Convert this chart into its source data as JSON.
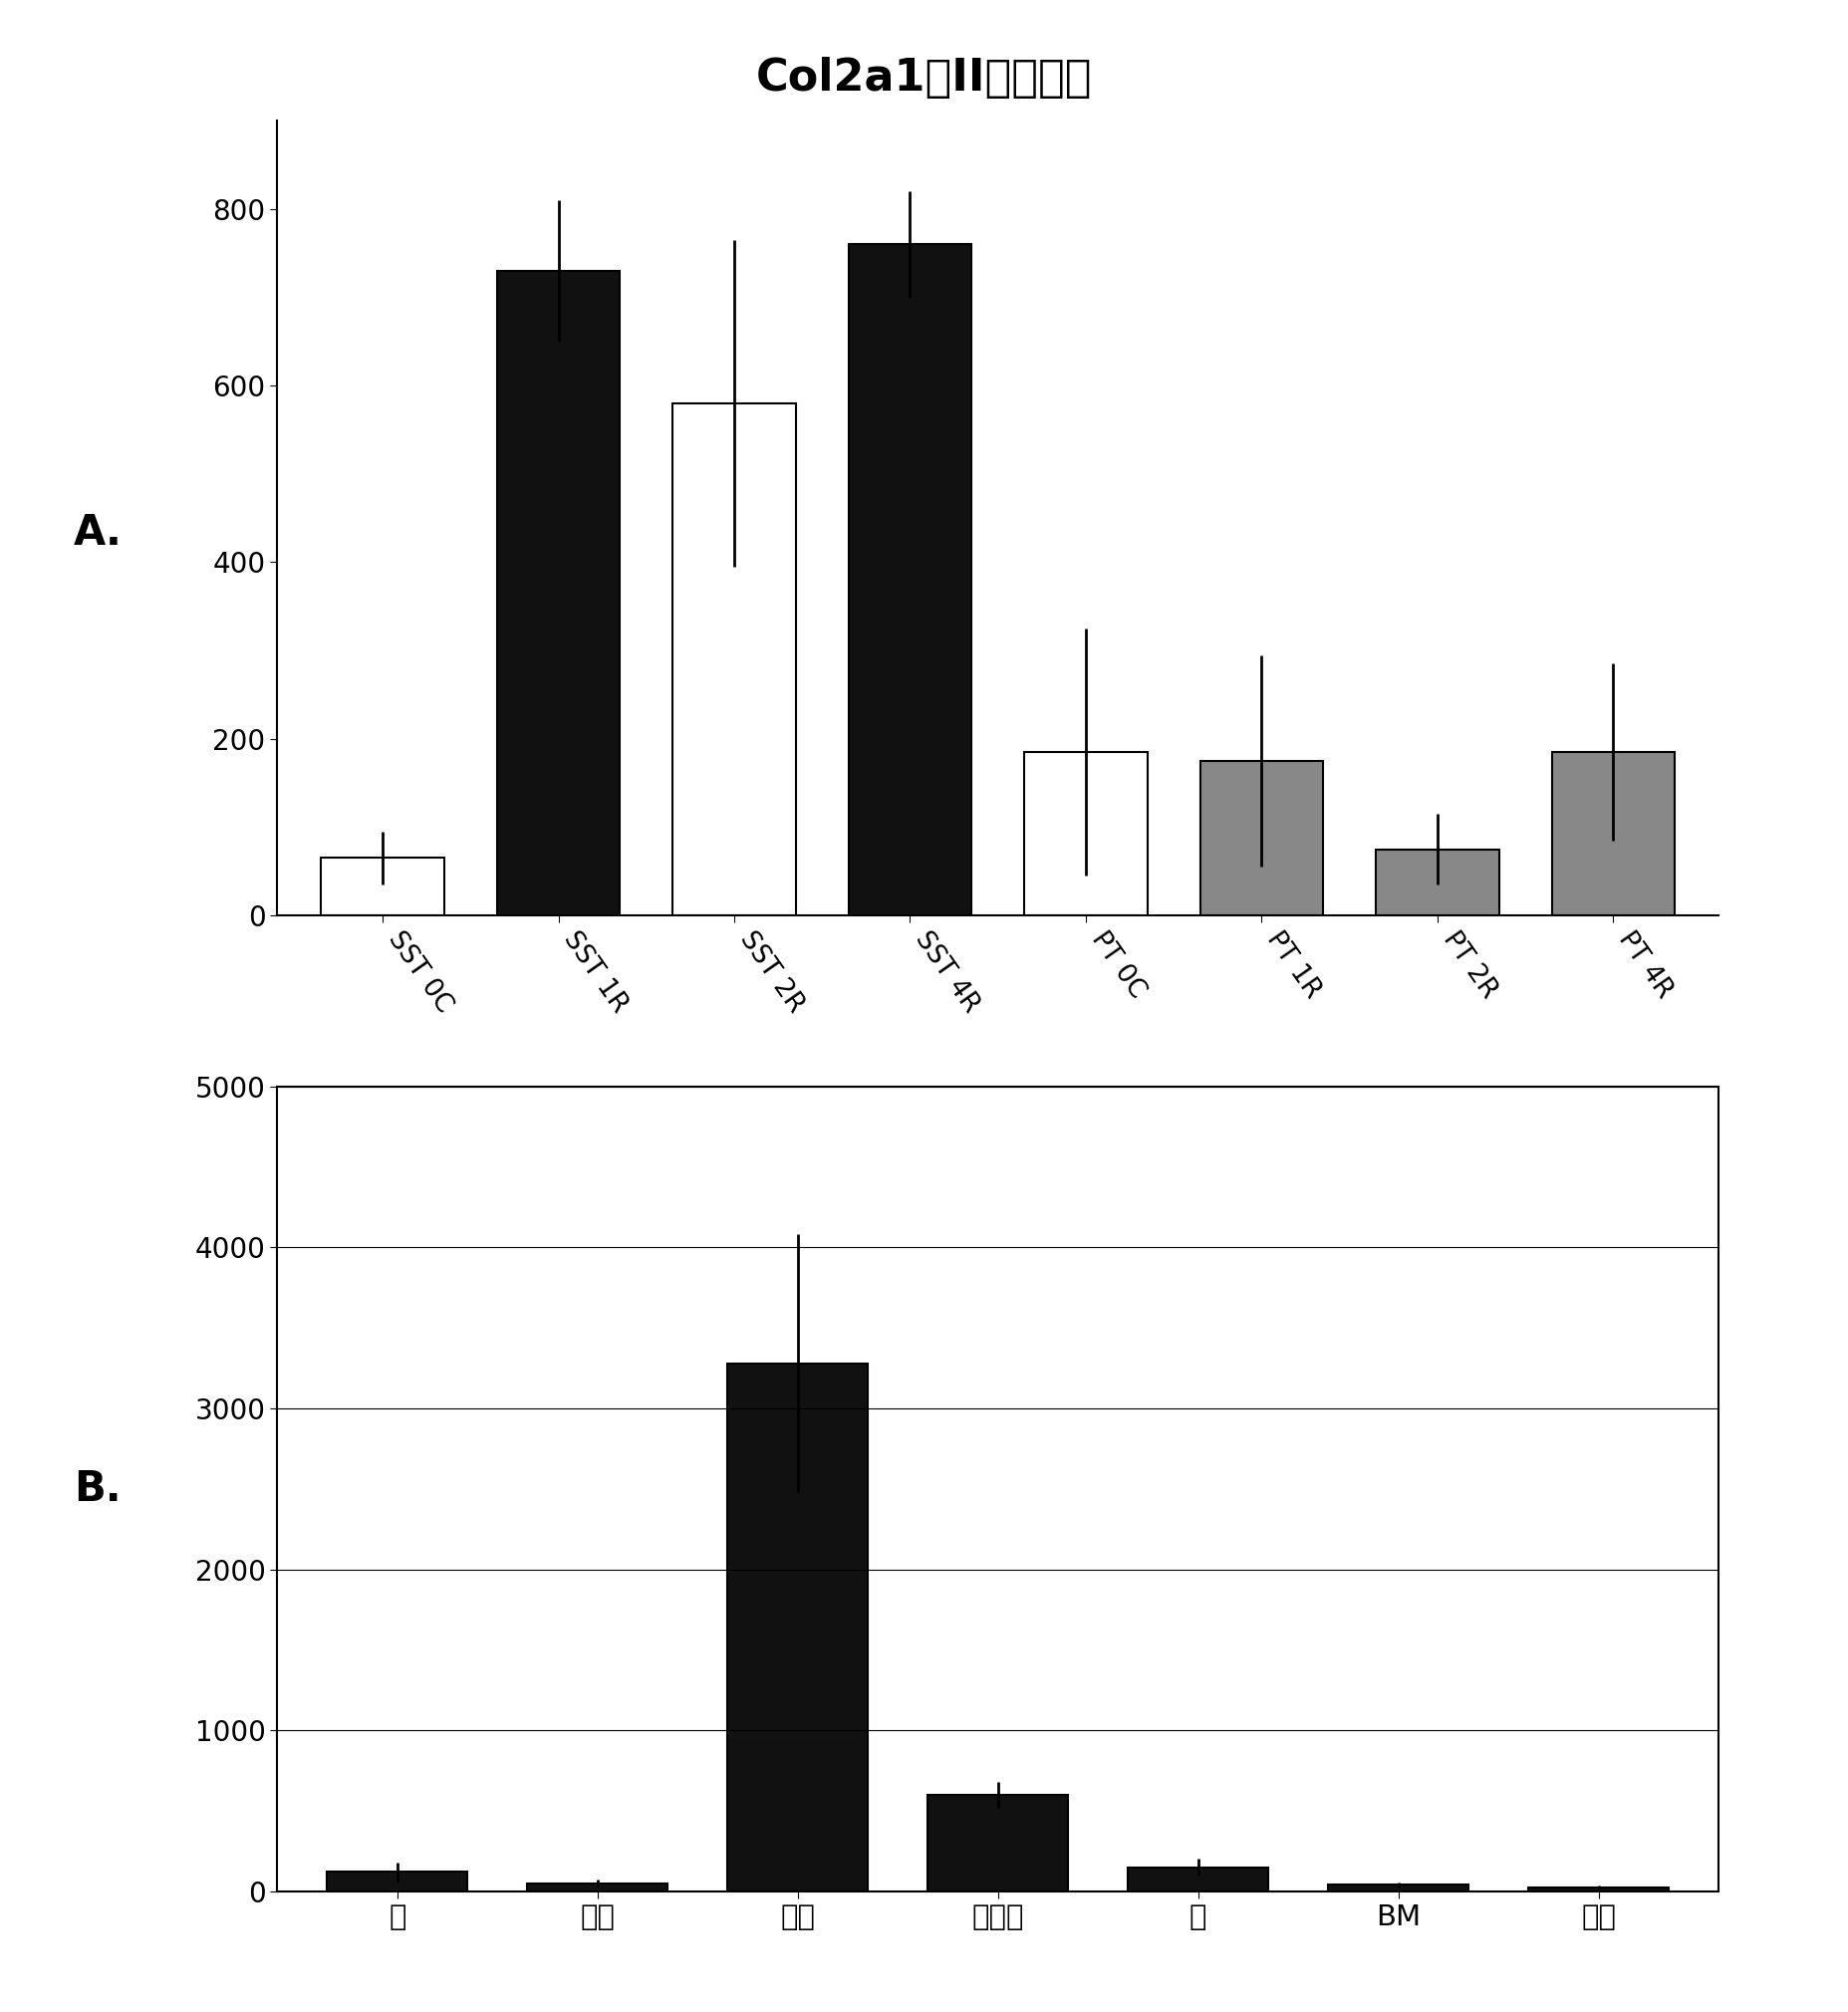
{
  "title": "Col2a1（II型胶原）",
  "panel_A_label": "A.",
  "panel_B_label": "B.",
  "chartA": {
    "categories": [
      "SST 0C",
      "SST 1R",
      "SST 2R",
      "SST 4R",
      "PT 0C",
      "PT 1R",
      "PT 2R",
      "PT 4R"
    ],
    "values": [
      65,
      730,
      580,
      760,
      185,
      175,
      75,
      185
    ],
    "errors": [
      30,
      80,
      185,
      60,
      140,
      120,
      40,
      100
    ],
    "colors": [
      "#ffffff",
      "#111111",
      "#ffffff",
      "#111111",
      "#ffffff",
      "#888888",
      "#888888",
      "#888888"
    ],
    "edge_colors": [
      "#000000",
      "#000000",
      "#000000",
      "#000000",
      "#000000",
      "#000000",
      "#000000",
      "#000000"
    ],
    "ylim": [
      0,
      900
    ],
    "yticks": [
      0,
      200,
      400,
      600,
      800
    ]
  },
  "chartB": {
    "categories": [
      "腱",
      "肌肉",
      "软骨",
      "半月板",
      "骨",
      "BM",
      "脂肪"
    ],
    "values": [
      120,
      50,
      3280,
      600,
      150,
      40,
      25
    ],
    "errors": [
      60,
      20,
      800,
      80,
      50,
      15,
      10
    ],
    "colors": [
      "#111111",
      "#111111",
      "#111111",
      "#111111",
      "#111111",
      "#111111",
      "#111111"
    ],
    "ylim": [
      0,
      5000
    ],
    "yticks": [
      0,
      1000,
      2000,
      3000,
      4000,
      5000
    ]
  }
}
